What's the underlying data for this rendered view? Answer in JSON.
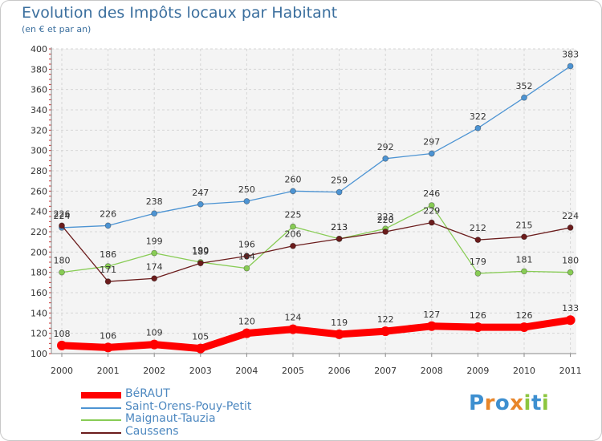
{
  "title": "Evolution des Impôts locaux par Habitant",
  "subtitle": "(en € et par an)",
  "logo": {
    "text": "Proxiti",
    "letter_colors": [
      "#3d8fd0",
      "#e8862a",
      "#3d8fd0",
      "#e8862a",
      "#8cc63f",
      "#3d8fd0",
      "#8cc63f"
    ]
  },
  "chart_data": {
    "type": "line",
    "x": [
      "2000",
      "2001",
      "2002",
      "2003",
      "2004",
      "2005",
      "2006",
      "2007",
      "2008",
      "2009",
      "2010",
      "2011"
    ],
    "ylim": [
      100,
      400
    ],
    "yticks": [
      "100",
      "120",
      "140",
      "160",
      "180",
      "200",
      "220",
      "240",
      "260",
      "280",
      "300",
      "320",
      "340",
      "360",
      "380",
      "400"
    ],
    "grid": true,
    "legend_position": "bottom-left",
    "series": [
      {
        "name": "BéRAUT",
        "color": "#ff0000",
        "values": [
          108,
          106,
          109,
          105,
          120,
          124,
          119,
          122,
          127,
          126,
          126,
          133
        ],
        "labels": [
          "108",
          "106",
          "109",
          "105",
          "120",
          "124",
          "119",
          "122",
          "127",
          "126",
          "126",
          "133"
        ]
      },
      {
        "name": "Saint-Orens-Pouy-Petit",
        "color": "#4d94d3",
        "values": [
          224,
          226,
          238,
          247,
          250,
          260,
          259,
          292,
          297,
          322,
          352,
          383
        ],
        "labels": [
          "224",
          "226",
          "238",
          "247",
          "250",
          "260",
          "259",
          "292",
          "297",
          "322",
          "352",
          "383"
        ]
      },
      {
        "name": "Maignaut-Tauzia",
        "color": "#88cc55",
        "values": [
          180,
          186,
          199,
          190,
          184,
          225,
          213,
          223,
          246,
          179,
          181,
          180
        ],
        "labels": [
          "180",
          "186",
          "199",
          "190",
          "184",
          "225",
          "213",
          "223",
          "246",
          "179",
          "181",
          "180"
        ]
      },
      {
        "name": "Caussens",
        "color": "#6b1c1c",
        "values": [
          226,
          171,
          174,
          189,
          196,
          206,
          213,
          220,
          229,
          212,
          215,
          224
        ],
        "labels": [
          "226",
          "171",
          "174",
          "189",
          "196",
          "206",
          "213",
          "220",
          "229",
          "212",
          "215",
          "224"
        ]
      }
    ]
  }
}
